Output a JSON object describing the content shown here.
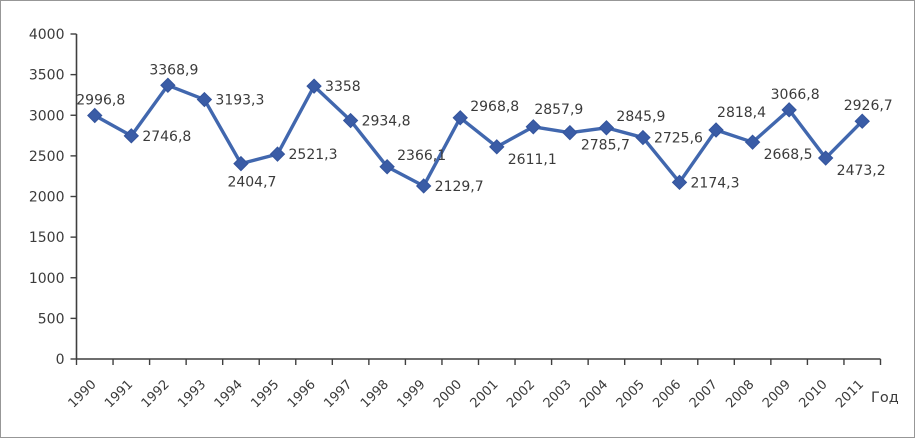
{
  "window": {
    "background": "#ffffff",
    "frame_border_color": "#979797"
  },
  "chart_data": {
    "type": "line",
    "title": "",
    "xlabel": "Год",
    "ylabel": "",
    "categories": [
      "1990",
      "1991",
      "1992",
      "1993",
      "1994",
      "1995",
      "1996",
      "1997",
      "1998",
      "1999",
      "2000",
      "2001",
      "2002",
      "2003",
      "2004",
      "2005",
      "2006",
      "2007",
      "2008",
      "2009",
      "2010",
      "2011"
    ],
    "series": [
      {
        "name": "",
        "values": [
          2996.8,
          2746.8,
          3368.9,
          3193.3,
          2404.7,
          2521.3,
          3358,
          2934.8,
          2366.1,
          2129.7,
          2968.8,
          2611.1,
          2857.9,
          2785.7,
          2845.9,
          2725.6,
          2174.3,
          2818.4,
          2668.5,
          3066.8,
          2473.2,
          2926.7
        ],
        "labels": [
          "2996,8",
          "2746,8",
          "3368,9",
          "3193,3",
          "2404,7",
          "2521,3",
          "3358",
          "2934,8",
          "2366,1",
          "2129,7",
          "2968,8",
          "2611,1",
          "2857,9",
          "2785,7",
          "2845,9",
          "2725,6",
          "2174,3",
          "2818,4",
          "2668,5",
          "3066,8",
          "2473,2",
          "2926,7"
        ],
        "label_positions": [
          "above",
          "right",
          "above",
          "right",
          "below",
          "right",
          "right",
          "right",
          "right-up",
          "right",
          "right-up",
          "right-down",
          "above-right",
          "right-down",
          "right-up",
          "right",
          "right",
          "above-right",
          "right-down",
          "above",
          "right-down",
          "above"
        ]
      }
    ],
    "ylim": [
      0,
      4000
    ],
    "ytick_step": 500,
    "yticks": [
      "0",
      "500",
      "1000",
      "1500",
      "2000",
      "2500",
      "3000",
      "3500",
      "4000"
    ],
    "x_tick_angle_deg": -45,
    "grid": false,
    "legend": null,
    "marker": "diamond",
    "colors": {
      "line": "#4167AE",
      "marker": "#3A5CA6",
      "marker_edge": "#34549C",
      "text": "#3b3b3b",
      "axis": "#3f3f3f"
    }
  }
}
